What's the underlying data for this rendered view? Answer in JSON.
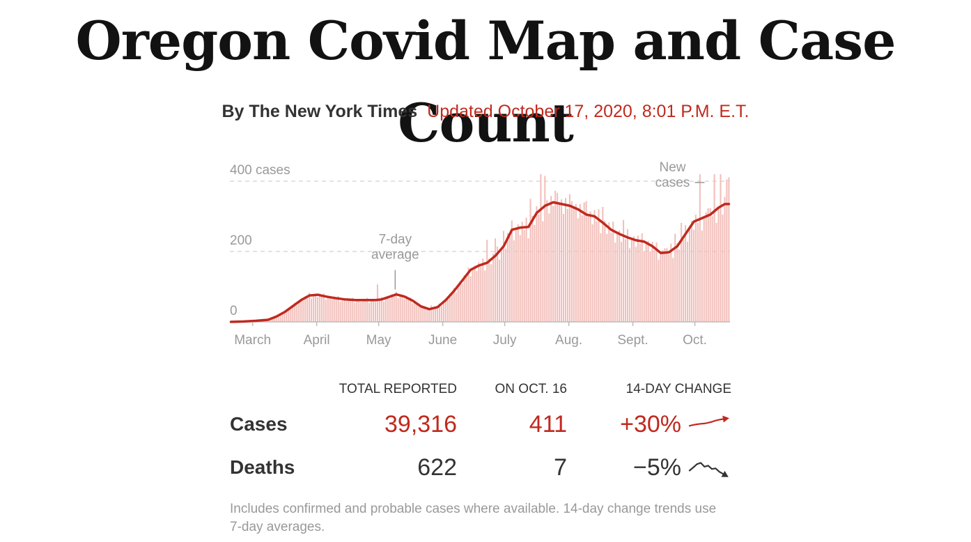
{
  "title": "Oregon Covid Map and Case Count",
  "byline": {
    "author": "By The New York Times",
    "updated": "Updated October 17, 2020, 8:01 P.M. E.T."
  },
  "colors": {
    "red": "#c0291e",
    "bar": "#f2bfba",
    "grid": "#d9d9d9",
    "muted": "#999999",
    "text": "#333333"
  },
  "chart_data": {
    "type": "bar",
    "title": "",
    "xlabel": "",
    "ylabel": "",
    "ylim": [
      0,
      420
    ],
    "y_ticks": [
      {
        "value": 400,
        "label": "400 cases"
      },
      {
        "value": 200,
        "label": "200"
      },
      {
        "value": 0,
        "label": "0"
      }
    ],
    "x_ticks": [
      {
        "day": 11,
        "label": "March"
      },
      {
        "day": 42,
        "label": "April"
      },
      {
        "day": 72,
        "label": "May"
      },
      {
        "day": 103,
        "label": "June"
      },
      {
        "day": 133,
        "label": "July"
      },
      {
        "day": 164,
        "label": "Aug."
      },
      {
        "day": 195,
        "label": "Sept."
      },
      {
        "day": 225,
        "label": "Oct."
      }
    ],
    "date_range": {
      "start": "March 1",
      "end": "Oct. 16"
    },
    "series": [
      {
        "name": "New cases",
        "type": "bar",
        "keyframes": [
          [
            0,
            0
          ],
          [
            6,
            1
          ],
          [
            12,
            3
          ],
          [
            18,
            6
          ],
          [
            22,
            15
          ],
          [
            26,
            28
          ],
          [
            30,
            45
          ],
          [
            34,
            62
          ],
          [
            38,
            75
          ],
          [
            42,
            77
          ],
          [
            46,
            72
          ],
          [
            50,
            68
          ],
          [
            55,
            64
          ],
          [
            60,
            62
          ],
          [
            65,
            62
          ],
          [
            70,
            62
          ],
          [
            73,
            64
          ],
          [
            77,
            72
          ],
          [
            80,
            78
          ],
          [
            84,
            72
          ],
          [
            88,
            60
          ],
          [
            92,
            44
          ],
          [
            96,
            36
          ],
          [
            100,
            42
          ],
          [
            104,
            62
          ],
          [
            108,
            88
          ],
          [
            112,
            118
          ],
          [
            116,
            148
          ],
          [
            120,
            160
          ],
          [
            124,
            168
          ],
          [
            128,
            188
          ],
          [
            132,
            215
          ],
          [
            136,
            262
          ],
          [
            140,
            268
          ],
          [
            144,
            270
          ],
          [
            148,
            310
          ],
          [
            152,
            330
          ],
          [
            156,
            340
          ],
          [
            160,
            335
          ],
          [
            164,
            330
          ],
          [
            168,
            320
          ],
          [
            172,
            305
          ],
          [
            176,
            300
          ],
          [
            180,
            282
          ],
          [
            184,
            262
          ],
          [
            188,
            250
          ],
          [
            192,
            240
          ],
          [
            196,
            232
          ],
          [
            200,
            228
          ],
          [
            204,
            215
          ],
          [
            208,
            196
          ],
          [
            212,
            198
          ],
          [
            216,
            215
          ],
          [
            220,
            250
          ],
          [
            224,
            285
          ],
          [
            228,
            295
          ],
          [
            232,
            305
          ],
          [
            236,
            325
          ],
          [
            239,
            335
          ],
          [
            241,
            335
          ]
        ],
        "spikes": [
          [
            71,
            40
          ],
          [
            97,
            8
          ],
          [
            124,
            65
          ],
          [
            128,
            55
          ],
          [
            132,
            35
          ],
          [
            145,
            70
          ],
          [
            150,
            80
          ],
          [
            152,
            85
          ],
          [
            158,
            70
          ],
          [
            165,
            55
          ],
          [
            172,
            75
          ],
          [
            180,
            45
          ],
          [
            190,
            30
          ],
          [
            210,
            28
          ],
          [
            215,
            40
          ],
          [
            218,
            35
          ],
          [
            227,
            100
          ],
          [
            231,
            45
          ],
          [
            234,
            120
          ],
          [
            237,
            85
          ],
          [
            240,
            80
          ],
          [
            241,
            76
          ]
        ],
        "last_value": 411
      },
      {
        "name": "7-day average",
        "type": "line",
        "keyframes": [
          [
            0,
            0
          ],
          [
            6,
            1
          ],
          [
            12,
            3
          ],
          [
            18,
            6
          ],
          [
            22,
            15
          ],
          [
            26,
            28
          ],
          [
            30,
            45
          ],
          [
            34,
            62
          ],
          [
            38,
            75
          ],
          [
            42,
            77
          ],
          [
            46,
            72
          ],
          [
            50,
            68
          ],
          [
            55,
            64
          ],
          [
            60,
            62
          ],
          [
            65,
            62
          ],
          [
            70,
            62
          ],
          [
            73,
            64
          ],
          [
            77,
            72
          ],
          [
            80,
            78
          ],
          [
            84,
            72
          ],
          [
            88,
            60
          ],
          [
            92,
            44
          ],
          [
            96,
            36
          ],
          [
            100,
            42
          ],
          [
            104,
            62
          ],
          [
            108,
            88
          ],
          [
            112,
            118
          ],
          [
            116,
            148
          ],
          [
            120,
            160
          ],
          [
            124,
            168
          ],
          [
            128,
            188
          ],
          [
            132,
            215
          ],
          [
            136,
            262
          ],
          [
            140,
            268
          ],
          [
            144,
            270
          ],
          [
            148,
            310
          ],
          [
            152,
            330
          ],
          [
            156,
            340
          ],
          [
            160,
            335
          ],
          [
            164,
            330
          ],
          [
            168,
            320
          ],
          [
            172,
            305
          ],
          [
            176,
            300
          ],
          [
            180,
            282
          ],
          [
            184,
            262
          ],
          [
            188,
            250
          ],
          [
            192,
            240
          ],
          [
            196,
            232
          ],
          [
            200,
            228
          ],
          [
            204,
            215
          ],
          [
            208,
            196
          ],
          [
            212,
            198
          ],
          [
            216,
            215
          ],
          [
            220,
            250
          ],
          [
            224,
            285
          ],
          [
            228,
            295
          ],
          [
            232,
            305
          ],
          [
            236,
            325
          ],
          [
            239,
            335
          ],
          [
            241,
            335
          ]
        ]
      }
    ],
    "annotations": [
      {
        "text_lines": [
          "7-day",
          "average"
        ],
        "day": 80,
        "value": 80
      },
      {
        "text_lines": [
          "New",
          "cases"
        ],
        "day": 227,
        "value": 420
      }
    ]
  },
  "stats": {
    "headers": {
      "total": "TOTAL REPORTED",
      "day": "ON OCT. 16",
      "change": "14-DAY CHANGE"
    },
    "rows": [
      {
        "label": "Cases",
        "total": "39,316",
        "day": "411",
        "change": "+30%",
        "trend": [
          0.4,
          0.46,
          0.5,
          0.53,
          0.55,
          0.6,
          0.66,
          0.74,
          0.8,
          0.84
        ]
      },
      {
        "label": "Deaths",
        "total": "622",
        "day": "7",
        "change": "−5%",
        "trend": [
          0.3,
          0.5,
          0.72,
          0.8,
          0.55,
          0.62,
          0.4,
          0.44,
          0.22,
          0.08
        ]
      }
    ]
  },
  "footnote": "Includes confirmed and probable cases where available. 14-day change trends use 7-day averages."
}
